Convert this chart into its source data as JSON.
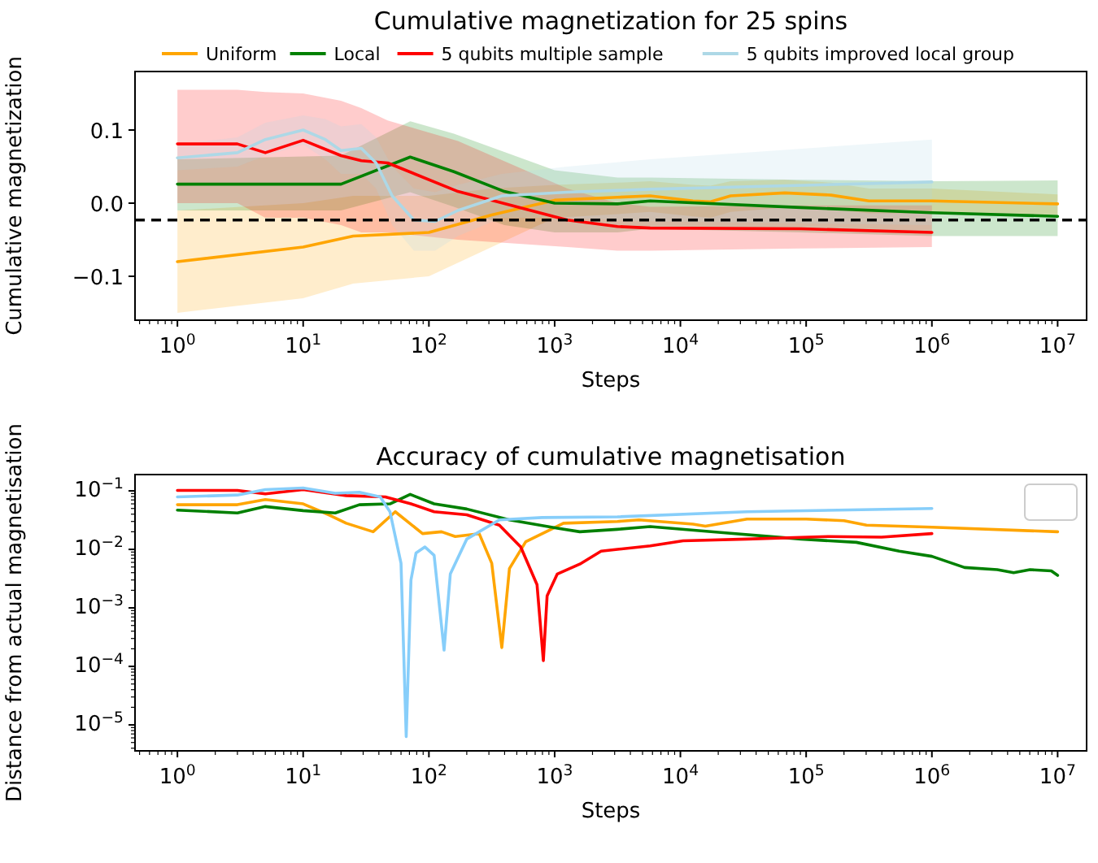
{
  "chart_data": [
    {
      "type": "line",
      "title": "Cumulative magnetization for 25 spins",
      "xlabel": "Steps",
      "ylabel": "Cumulative magnetization",
      "log": "x",
      "legend": "top",
      "xlim": [
        0.46,
        17000000
      ],
      "xticks": [
        {
          "value": 1,
          "label": "10$^{0}$"
        },
        {
          "value": 10,
          "label": "10$^{1}$"
        },
        {
          "value": 100,
          "label": "10$^{2}$"
        },
        {
          "value": 1000,
          "label": "10$^{3}$"
        },
        {
          "value": 10000,
          "label": "10$^{4}$"
        },
        {
          "value": 100000,
          "label": "10$^{5}$"
        },
        {
          "value": 1000000,
          "label": "10$^{6}$"
        },
        {
          "value": 10000000,
          "label": "10$^{7}$"
        }
      ],
      "ylim": [
        -0.16,
        0.18
      ],
      "yticks": [
        {
          "value": -0.1,
          "label": "−0.1"
        },
        {
          "value": 0,
          "label": "0.0"
        },
        {
          "value": 0.1,
          "label": "0.1"
        }
      ],
      "ref_lines": [
        {
          "axis": "y",
          "value": -0.023,
          "color": "#000000",
          "line_style": "dashed"
        }
      ],
      "series": [
        {
          "name": "Uniform",
          "color": "#ffa500",
          "x": [
            1,
            10,
            25,
            100,
            316,
            1000,
            3160,
            5750,
            12600,
            17400,
            25100,
            67600,
            158000,
            316000,
            1000000,
            10000000
          ],
          "values": [
            -0.08,
            -0.06,
            -0.045,
            -0.04,
            -0.016,
            0.004,
            0.008,
            0.01,
            0.003,
            0.002,
            0.01,
            0.014,
            0.011,
            0.003,
            0.003,
            -0.001
          ],
          "upper": [
            -0.01,
            0.0,
            0.01,
            0.01,
            0.02,
            0.025,
            0.028,
            0.03,
            0.025,
            0.024,
            0.03,
            0.032,
            0.028,
            0.02,
            0.02,
            0.012
          ],
          "lower": [
            -0.15,
            -0.13,
            -0.11,
            -0.1,
            -0.06,
            -0.02,
            -0.015,
            -0.012,
            -0.018,
            -0.02,
            -0.012,
            -0.006,
            -0.008,
            -0.014,
            -0.014,
            -0.016
          ]
        },
        {
          "name": "Local",
          "color": "#008000",
          "x": [
            1,
            20,
            71,
            158,
            398,
            1000,
            3160,
            5750,
            91000,
            1000000,
            10000000
          ],
          "values": [
            0.026,
            0.026,
            0.063,
            0.043,
            0.016,
            0.0,
            -0.001,
            0.003,
            -0.006,
            -0.013,
            -0.018
          ],
          "upper": [
            0.06,
            0.065,
            0.112,
            0.095,
            0.07,
            0.045,
            0.035,
            0.035,
            0.032,
            0.03,
            0.031
          ],
          "lower": [
            -0.01,
            -0.01,
            0.015,
            -0.005,
            -0.03,
            -0.04,
            -0.04,
            -0.035,
            -0.04,
            -0.045,
            -0.045
          ]
        },
        {
          "name": "5 qubits multiple sample",
          "color": "#ff0000",
          "x": [
            1,
            3,
            5,
            10,
            20,
            29,
            47,
            170,
            1260,
            3160,
            5750,
            91000,
            1000000
          ],
          "values": [
            0.081,
            0.081,
            0.069,
            0.086,
            0.065,
            0.058,
            0.055,
            0.016,
            -0.023,
            -0.032,
            -0.034,
            -0.035,
            -0.04
          ],
          "upper": [
            0.155,
            0.155,
            0.152,
            0.15,
            0.14,
            0.13,
            0.113,
            0.085,
            0.02,
            0.0,
            -0.005,
            -0.003,
            -0.003
          ],
          "lower": [
            0.0,
            0.0,
            -0.02,
            -0.02,
            -0.03,
            -0.04,
            -0.04,
            -0.05,
            -0.06,
            -0.065,
            -0.065,
            -0.062,
            -0.06
          ]
        },
        {
          "name": "5 qubits improved local group",
          "color": "#add8e6",
          "x": [
            1,
            3,
            5,
            10,
            15,
            20,
            29,
            38,
            51,
            76,
            112,
            170,
            380,
            1260,
            5750,
            1000000
          ],
          "values": [
            0.062,
            0.069,
            0.087,
            0.1,
            0.087,
            0.072,
            0.075,
            0.055,
            0.01,
            -0.023,
            -0.025,
            -0.01,
            0.01,
            0.015,
            0.019,
            0.029
          ],
          "upper": [
            0.08,
            0.09,
            0.11,
            0.12,
            0.115,
            0.105,
            0.108,
            0.09,
            0.05,
            0.02,
            0.015,
            0.025,
            0.04,
            0.05,
            0.06,
            0.087
          ],
          "lower": [
            0.045,
            0.05,
            0.065,
            0.08,
            0.06,
            0.04,
            0.04,
            0.02,
            -0.03,
            -0.065,
            -0.065,
            -0.045,
            -0.02,
            -0.02,
            -0.025,
            -0.03
          ]
        }
      ]
    },
    {
      "type": "line",
      "title": "Accuracy of cumulative magnetisation",
      "xlabel": "Steps",
      "ylabel": "Distance from actual magnetisation",
      "log": "xy",
      "legend": "top right",
      "xlim": [
        0.46,
        17000000
      ],
      "xticks": [
        {
          "value": 1,
          "label": "10$^{0}$"
        },
        {
          "value": 10,
          "label": "10$^{1}$"
        },
        {
          "value": 100,
          "label": "10$^{2}$"
        },
        {
          "value": 1000,
          "label": "10$^{3}$"
        },
        {
          "value": 10000,
          "label": "10$^{4}$"
        },
        {
          "value": 100000,
          "label": "10$^{5}$"
        },
        {
          "value": 1000000,
          "label": "10$^{6}$"
        },
        {
          "value": 10000000,
          "label": "10$^{7}$"
        }
      ],
      "ylim": [
        3.6e-06,
        0.19
      ],
      "yticks": [
        {
          "value": 1e-05,
          "label": "10$^{−5}$"
        },
        {
          "value": 0.0001,
          "label": "10$^{−4}$"
        },
        {
          "value": 0.001,
          "label": "10$^{−3}$"
        },
        {
          "value": 0.01,
          "label": "10$^{−2}$"
        },
        {
          "value": 0.1,
          "label": "10$^{−1}$"
        }
      ],
      "series": [
        {
          "color": "#ffa500",
          "x": [
            1,
            3,
            5,
            10,
            16,
            22,
            36,
            54,
            89,
            126,
            162,
            251,
            316,
            380,
            437,
            589,
            1175,
            3160,
            4680,
            12600,
            15800,
            33900,
            100000,
            200000,
            302000,
            1000000,
            10000000
          ],
          "values": [
            0.058,
            0.058,
            0.071,
            0.06,
            0.039,
            0.028,
            0.02,
            0.044,
            0.0186,
            0.02,
            0.0166,
            0.0186,
            0.0058,
            0.00021,
            0.0047,
            0.0135,
            0.028,
            0.03,
            0.032,
            0.027,
            0.025,
            0.033,
            0.033,
            0.031,
            0.026,
            0.024,
            0.02
          ]
        },
        {
          "color": "#008000",
          "x": [
            1,
            3,
            5,
            10,
            18,
            28,
            49,
            71,
            110,
            200,
            437,
            1050,
            1585,
            3160,
            5750,
            20900,
            91000,
            251000,
            550000,
            1000000,
            1820000,
            3310000,
            4470000,
            6030000,
            8900000,
            10000000
          ],
          "values": [
            0.047,
            0.042,
            0.054,
            0.046,
            0.042,
            0.058,
            0.06,
            0.087,
            0.06,
            0.049,
            0.032,
            0.023,
            0.02,
            0.022,
            0.0245,
            0.0195,
            0.015,
            0.0132,
            0.0093,
            0.0076,
            0.0049,
            0.0045,
            0.004,
            0.0045,
            0.0043,
            0.0036
          ]
        },
        {
          "color": "#ff0000",
          "x": [
            1,
            3,
            5,
            10,
            22,
            45,
            72,
            110,
            200,
            363,
            537,
            724,
            813,
            871,
            1050,
            1585,
            2340,
            3160,
            5750,
            10500,
            33900,
            151000,
            398000,
            1000000
          ],
          "values": [
            0.102,
            0.102,
            0.089,
            0.105,
            0.083,
            0.079,
            0.06,
            0.044,
            0.039,
            0.026,
            0.011,
            0.0025,
            0.000126,
            0.0016,
            0.0038,
            0.0056,
            0.0093,
            0.01,
            0.0115,
            0.014,
            0.015,
            0.0166,
            0.0162,
            0.0186
          ]
        },
        {
          "color": "#87cefa",
          "x": [
            1,
            3,
            5,
            10,
            18,
            28,
            41,
            49,
            60,
            66,
            72,
            79,
            93,
            110,
            132,
            148,
            200,
            363,
            794,
            3160,
            33900,
            1000000
          ],
          "values": [
            0.079,
            0.085,
            0.105,
            0.112,
            0.091,
            0.095,
            0.079,
            0.044,
            0.0058,
            6.3e-06,
            0.003,
            0.0087,
            0.011,
            0.0079,
            0.00019,
            0.0038,
            0.015,
            0.032,
            0.035,
            0.036,
            0.044,
            0.05
          ]
        }
      ]
    }
  ]
}
